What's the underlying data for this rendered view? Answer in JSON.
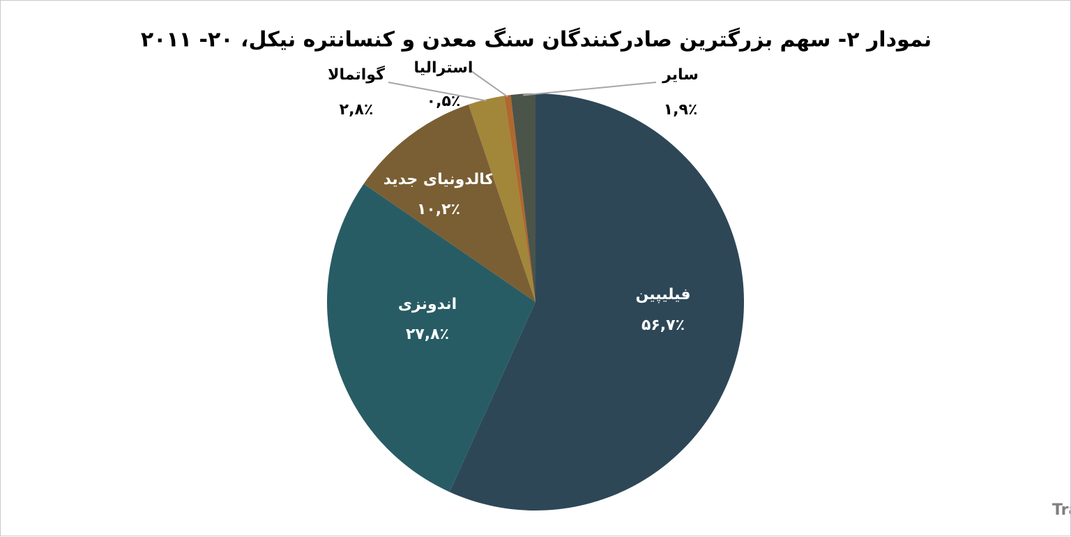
{
  "chart_data": {
    "type": "pie",
    "title": "نمودار ۲- سهم بزرگترین صادرکنندگان سنگ معدن و کنسانتره نیکل، ۲۰- ۲۰۱۱",
    "categories": [
      "فیلیپین",
      "اندونزی",
      "کالدونیای جدید",
      "گواتمالا",
      "استرالیا",
      "سایر"
    ],
    "values": [
      56.7,
      27.8,
      10.2,
      2.8,
      0.5,
      1.9
    ],
    "value_labels": [
      "۵۶,۷٪",
      "۲۷,۸٪",
      "۱۰,۲٪",
      "۲,۸٪",
      "۰,۵٪",
      "۱,۹٪"
    ],
    "colors": [
      "#2d4757",
      "#285c64",
      "#7a5f34",
      "#a2863a",
      "#b0682e",
      "#4b5449"
    ],
    "source": "منبع: Trade Map"
  }
}
